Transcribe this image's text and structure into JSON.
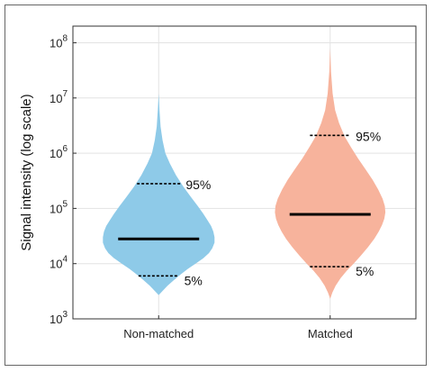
{
  "chart_data": {
    "type": "violin",
    "ylabel": "Signal intensity (log scale)",
    "yscale": "log",
    "ylim": [
      1000,
      200000000
    ],
    "yticks": [
      {
        "value": 1000,
        "base": "10",
        "exp": "3"
      },
      {
        "value": 10000,
        "base": "10",
        "exp": "4"
      },
      {
        "value": 100000,
        "base": "10",
        "exp": "5"
      },
      {
        "value": 1000000,
        "base": "10",
        "exp": "6"
      },
      {
        "value": 10000000,
        "base": "10",
        "exp": "7"
      },
      {
        "value": 100000000,
        "base": "10",
        "exp": "8"
      }
    ],
    "grid": true,
    "categories": [
      "Non-matched",
      "Matched"
    ],
    "series": [
      {
        "category": "Non-matched",
        "color": "#8ECAE8",
        "median": 28000,
        "p5": 6000,
        "p95": 280000,
        "p5_label": "5%",
        "p95_label": "95%",
        "min": 2700,
        "max": 12000000,
        "density": [
          [
            2700,
            0.0
          ],
          [
            3200,
            0.07
          ],
          [
            4000,
            0.16
          ],
          [
            5000,
            0.27
          ],
          [
            6200,
            0.38
          ],
          [
            8000,
            0.52
          ],
          [
            10000,
            0.66
          ],
          [
            12500,
            0.8
          ],
          [
            15500,
            0.9
          ],
          [
            19000,
            0.96
          ],
          [
            24000,
            1.0
          ],
          [
            30000,
            1.0
          ],
          [
            38000,
            0.98
          ],
          [
            48000,
            0.94
          ],
          [
            60000,
            0.88
          ],
          [
            80000,
            0.8
          ],
          [
            110000,
            0.7
          ],
          [
            160000,
            0.58
          ],
          [
            250000,
            0.44
          ],
          [
            400000,
            0.31
          ],
          [
            650000,
            0.2
          ],
          [
            1000000,
            0.12
          ],
          [
            1700000,
            0.07
          ],
          [
            3000000,
            0.035
          ],
          [
            6000000,
            0.015
          ],
          [
            12000000,
            0.0
          ]
        ]
      },
      {
        "category": "Matched",
        "color": "#F7B39C",
        "median": 78000,
        "p5": 8800,
        "p95": 2100000,
        "p5_label": "5%",
        "p95_label": "95%",
        "min": 2300,
        "max": 80000000,
        "density": [
          [
            2300,
            0.0
          ],
          [
            3000,
            0.04
          ],
          [
            4000,
            0.1
          ],
          [
            5500,
            0.19
          ],
          [
            7500,
            0.3
          ],
          [
            10000,
            0.42
          ],
          [
            14000,
            0.55
          ],
          [
            20000,
            0.68
          ],
          [
            28000,
            0.79
          ],
          [
            38000,
            0.87
          ],
          [
            50000,
            0.93
          ],
          [
            65000,
            0.97
          ],
          [
            85000,
            0.99
          ],
          [
            110000,
            0.98
          ],
          [
            150000,
            0.94
          ],
          [
            220000,
            0.86
          ],
          [
            330000,
            0.76
          ],
          [
            500000,
            0.64
          ],
          [
            800000,
            0.5
          ],
          [
            1300000,
            0.37
          ],
          [
            2000000,
            0.26
          ],
          [
            3500000,
            0.16
          ],
          [
            6000000,
            0.09
          ],
          [
            12000000,
            0.045
          ],
          [
            30000000,
            0.015
          ],
          [
            80000000,
            0.0
          ]
        ]
      }
    ]
  }
}
